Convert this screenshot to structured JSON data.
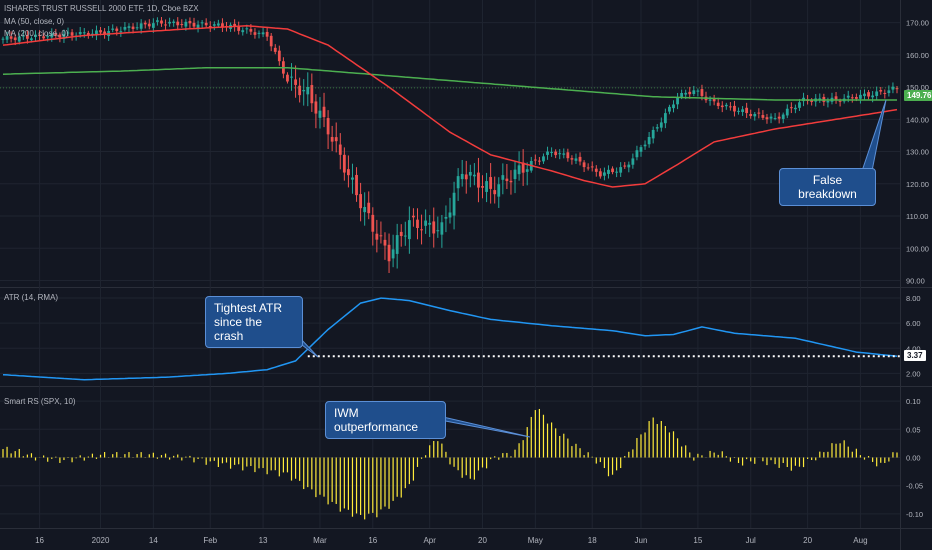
{
  "title": "ISHARES TRUST RUSSELL 2000 ETF, 1D, Cboe BZX",
  "legend": {
    "ma50": "MA (50, close, 0)",
    "ma200": "MA (200, close, 0)",
    "atr": "ATR (14, RMA)",
    "rs": "Smart RS (SPX, 10)"
  },
  "callouts": {
    "false_breakdown": "False breakdown",
    "tightest_atr": "Tightest ATR\nsince the crash",
    "iwm_out": "IWM outperformance"
  },
  "badges": {
    "price": "149.76",
    "atr": "3.37"
  },
  "colors": {
    "background": "#131722",
    "grid": "#1f2430",
    "up": "#26a69a",
    "down": "#ef5350",
    "ma50": "#f23c3c",
    "ma200": "#4caf50",
    "atr_line": "#2196f3",
    "rs_bar": "#ffeb3b",
    "callout": "#1f4e8c"
  },
  "chart_data": [
    {
      "type": "candlestick",
      "title": "ISHARES TRUST RUSSELL 2000 ETF, 1D, Cboe BZX",
      "ylim": [
        88,
        177
      ],
      "yticks": [
        "170.00",
        "160.00",
        "150.00",
        "140.00",
        "130.00",
        "120.00",
        "110.00",
        "100.00",
        "90.00"
      ],
      "x_ticks": [
        "16",
        "2020",
        "14",
        "Feb",
        "13",
        "Mar",
        "16",
        "Apr",
        "20",
        "May",
        "18",
        "Jun",
        "15",
        "Jul",
        "20",
        "Aug"
      ],
      "close_anchors": [
        [
          0,
          165
        ],
        [
          25,
          167
        ],
        [
          38,
          170
        ],
        [
          55,
          169
        ],
        [
          65,
          166
        ],
        [
          70,
          152
        ],
        [
          75,
          148
        ],
        [
          80,
          137
        ],
        [
          87,
          117
        ],
        [
          92,
          104
        ],
        [
          95,
          98
        ],
        [
          100,
          108
        ],
        [
          108,
          106
        ],
        [
          113,
          124
        ],
        [
          120,
          118
        ],
        [
          128,
          125
        ],
        [
          135,
          130
        ],
        [
          140,
          128
        ],
        [
          147,
          123
        ],
        [
          153,
          125
        ],
        [
          160,
          136
        ],
        [
          166,
          147
        ],
        [
          170,
          149
        ],
        [
          175,
          145
        ],
        [
          183,
          142
        ],
        [
          190,
          140
        ],
        [
          197,
          146
        ],
        [
          205,
          146
        ],
        [
          215,
          148
        ],
        [
          220,
          149.76
        ]
      ],
      "ma50_anchors": [
        [
          0,
          163
        ],
        [
          20,
          166
        ],
        [
          45,
          168
        ],
        [
          60,
          169
        ],
        [
          70,
          168
        ],
        [
          80,
          163
        ],
        [
          95,
          150
        ],
        [
          110,
          136
        ],
        [
          120,
          129
        ],
        [
          135,
          124
        ],
        [
          143,
          121
        ],
        [
          150,
          119
        ],
        [
          158,
          120
        ],
        [
          166,
          126
        ],
        [
          175,
          133
        ],
        [
          190,
          137
        ],
        [
          205,
          140
        ],
        [
          220,
          143
        ]
      ],
      "ma200_anchors": [
        [
          0,
          154
        ],
        [
          30,
          155
        ],
        [
          50,
          156
        ],
        [
          70,
          156
        ],
        [
          100,
          153
        ],
        [
          130,
          150
        ],
        [
          160,
          147
        ],
        [
          190,
          146
        ],
        [
          220,
          146
        ]
      ],
      "series": [
        {
          "name": "MA (50, close, 0)"
        },
        {
          "name": "MA (200, close, 0)"
        }
      ]
    },
    {
      "type": "line",
      "title": "ATR (14, RMA)",
      "ylim": [
        1.0,
        8.8
      ],
      "yticks": [
        "8.00",
        "6.00",
        "4.00",
        "2.00"
      ],
      "anchors": [
        [
          0,
          1.9
        ],
        [
          20,
          1.5
        ],
        [
          40,
          1.7
        ],
        [
          55,
          2.0
        ],
        [
          65,
          2.3
        ],
        [
          72,
          3.0
        ],
        [
          80,
          5.5
        ],
        [
          88,
          7.6
        ],
        [
          93,
          8.0
        ],
        [
          100,
          7.8
        ],
        [
          110,
          7.0
        ],
        [
          120,
          6.3
        ],
        [
          135,
          5.8
        ],
        [
          150,
          5.4
        ],
        [
          158,
          5.0
        ],
        [
          165,
          5.1
        ],
        [
          172,
          5.7
        ],
        [
          180,
          5.2
        ],
        [
          195,
          4.8
        ],
        [
          210,
          3.7
        ],
        [
          220,
          3.37
        ]
      ],
      "reference_line": 3.37
    },
    {
      "type": "bar",
      "title": "Smart RS (SPX, 10)",
      "ylim": [
        -0.125,
        0.125
      ],
      "yticks": [
        "0.10",
        "0.05",
        "0.00",
        "-0.05",
        "-0.10"
      ],
      "anchors": [
        [
          0,
          0.015
        ],
        [
          4,
          0.01
        ],
        [
          8,
          0.0
        ],
        [
          15,
          -0.005
        ],
        [
          25,
          0.005
        ],
        [
          35,
          0.005
        ],
        [
          45,
          0.0
        ],
        [
          52,
          -0.01
        ],
        [
          62,
          -0.02
        ],
        [
          70,
          -0.03
        ],
        [
          76,
          -0.06
        ],
        [
          83,
          -0.09
        ],
        [
          88,
          -0.105
        ],
        [
          92,
          -0.1
        ],
        [
          96,
          -0.08
        ],
        [
          100,
          -0.05
        ],
        [
          104,
          0.01
        ],
        [
          107,
          0.035
        ],
        [
          111,
          -0.02
        ],
        [
          115,
          -0.04
        ],
        [
          121,
          0.0
        ],
        [
          126,
          0.01
        ],
        [
          129,
          0.05
        ],
        [
          131,
          0.09
        ],
        [
          136,
          0.05
        ],
        [
          141,
          0.02
        ],
        [
          146,
          -0.005
        ],
        [
          150,
          -0.035
        ],
        [
          155,
          0.02
        ],
        [
          160,
          0.07
        ],
        [
          164,
          0.05
        ],
        [
          170,
          0.0
        ],
        [
          176,
          0.01
        ],
        [
          181,
          -0.01
        ],
        [
          186,
          -0.005
        ],
        [
          195,
          -0.02
        ],
        [
          200,
          0.0
        ],
        [
          206,
          0.03
        ],
        [
          211,
          0.005
        ],
        [
          216,
          -0.015
        ],
        [
          220,
          0.01
        ]
      ]
    }
  ]
}
